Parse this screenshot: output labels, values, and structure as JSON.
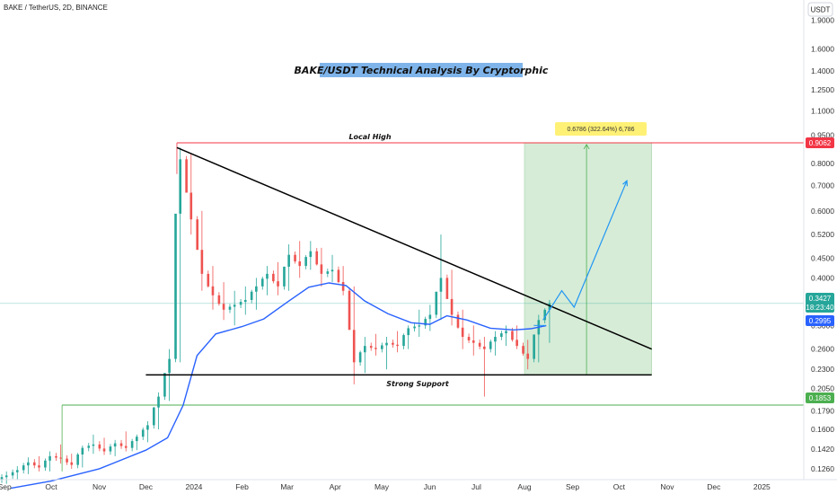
{
  "header": {
    "symbol": "BAKE / TetherUS, 2D, BINANCE",
    "currency_button": "USDT"
  },
  "chart_data": {
    "type": "candlestick",
    "title": "BAKE/USDT Technical Analysis By Cryptorphic",
    "y_scale": "log",
    "ylim": [
      0.118,
      2.15
    ],
    "y_ticks": [
      "1.9000",
      "1.6000",
      "1.4000",
      "1.2500",
      "1.1000",
      "0.9500",
      "0.8000",
      "0.7000",
      "0.6000",
      "0.5200",
      "0.4500",
      "0.4000",
      "0.3000",
      "0.2600",
      "0.2300",
      "0.2050",
      "0.1790",
      "0.1600",
      "0.1420",
      "0.1260"
    ],
    "x_ticks": [
      "Sep",
      "Oct",
      "Nov",
      "Dec",
      "2024",
      "Feb",
      "Mar",
      "Apr",
      "May",
      "Jun",
      "Jul",
      "Aug",
      "Sep",
      "Oct",
      "Nov",
      "Dec",
      "2025"
    ],
    "x_range": [
      "2023-08-29",
      "2025-01-28"
    ],
    "price_tags": {
      "local_high": "0.9062",
      "last_price": "0.3427",
      "countdown": "18:23:40",
      "moving_average": "0.2995",
      "support_level": "0.1853"
    },
    "annotations": {
      "local_high": "Local High",
      "strong_support": "Strong Support",
      "measure": "0.6786 (322.64%) 6,786"
    },
    "colors": {
      "bull": "#26a69a",
      "bear": "#ef5350",
      "ma": "#2962ff",
      "local_high_line": "#f23645",
      "support_line": "#4caf50",
      "title_bg": "#7eb4ea",
      "target_zone": "#c8e6c9",
      "projection": "#2196f3"
    },
    "levels": {
      "local_high": 0.9062,
      "support": 0.1853,
      "base_line": 0.2225,
      "current": 0.3427,
      "ma_last": 0.2995
    },
    "trendline": {
      "start": {
        "date": "2023-12-21",
        "value": 0.88
      },
      "end": {
        "date": "2024-10-22",
        "value": 0.26
      }
    },
    "support_segment": {
      "start": "2023-12-01",
      "end": "2024-10-22",
      "value": 0.2225
    },
    "local_high_segment": {
      "start": "2023-12-21",
      "value": 0.9062
    },
    "target_zone": {
      "start": "2024-08-01",
      "end": "2024-10-22",
      "top": 0.9062,
      "bottom": 0.2225
    },
    "projection_path": [
      {
        "date": "2024-08-13",
        "value": 0.31
      },
      {
        "date": "2024-08-25",
        "value": 0.37
      },
      {
        "date": "2024-09-02",
        "value": 0.335
      },
      {
        "date": "2024-10-06",
        "value": 0.72
      }
    ],
    "ohlc_weekly": [
      {
        "d": "2023-08-29",
        "o": 0.118,
        "h": 0.124,
        "l": 0.115,
        "c": 0.121
      },
      {
        "d": "2023-09-05",
        "o": 0.121,
        "h": 0.128,
        "l": 0.118,
        "c": 0.125
      },
      {
        "d": "2023-09-12",
        "o": 0.125,
        "h": 0.135,
        "l": 0.122,
        "c": 0.131
      },
      {
        "d": "2023-09-19",
        "o": 0.131,
        "h": 0.136,
        "l": 0.124,
        "c": 0.127
      },
      {
        "d": "2023-09-26",
        "o": 0.127,
        "h": 0.14,
        "l": 0.124,
        "c": 0.136
      },
      {
        "d": "2023-10-03",
        "o": 0.136,
        "h": 0.146,
        "l": 0.13,
        "c": 0.134
      },
      {
        "d": "2023-10-10",
        "o": 0.134,
        "h": 0.138,
        "l": 0.126,
        "c": 0.129
      },
      {
        "d": "2023-10-17",
        "o": 0.129,
        "h": 0.145,
        "l": 0.127,
        "c": 0.143
      },
      {
        "d": "2023-10-24",
        "o": 0.143,
        "h": 0.155,
        "l": 0.138,
        "c": 0.146
      },
      {
        "d": "2023-10-31",
        "o": 0.146,
        "h": 0.152,
        "l": 0.137,
        "c": 0.14
      },
      {
        "d": "2023-11-07",
        "o": 0.14,
        "h": 0.15,
        "l": 0.136,
        "c": 0.147
      },
      {
        "d": "2023-11-14",
        "o": 0.147,
        "h": 0.158,
        "l": 0.14,
        "c": 0.143
      },
      {
        "d": "2023-11-21",
        "o": 0.143,
        "h": 0.155,
        "l": 0.141,
        "c": 0.153
      },
      {
        "d": "2023-11-28",
        "o": 0.153,
        "h": 0.168,
        "l": 0.148,
        "c": 0.164
      },
      {
        "d": "2023-12-05",
        "o": 0.164,
        "h": 0.2,
        "l": 0.16,
        "c": 0.195
      },
      {
        "d": "2023-12-12",
        "o": 0.195,
        "h": 0.26,
        "l": 0.19,
        "c": 0.245
      },
      {
        "d": "2023-12-19",
        "o": 0.245,
        "h": 0.88,
        "l": 0.24,
        "c": 0.82
      },
      {
        "d": "2023-12-26",
        "o": 0.82,
        "h": 0.85,
        "l": 0.52,
        "c": 0.57
      },
      {
        "d": "2024-01-02",
        "o": 0.57,
        "h": 0.6,
        "l": 0.37,
        "c": 0.41
      },
      {
        "d": "2024-01-09",
        "o": 0.41,
        "h": 0.43,
        "l": 0.33,
        "c": 0.36
      },
      {
        "d": "2024-01-16",
        "o": 0.36,
        "h": 0.39,
        "l": 0.31,
        "c": 0.33
      },
      {
        "d": "2024-01-23",
        "o": 0.33,
        "h": 0.37,
        "l": 0.3,
        "c": 0.34
      },
      {
        "d": "2024-01-30",
        "o": 0.34,
        "h": 0.38,
        "l": 0.32,
        "c": 0.35
      },
      {
        "d": "2024-02-06",
        "o": 0.35,
        "h": 0.4,
        "l": 0.33,
        "c": 0.38
      },
      {
        "d": "2024-02-13",
        "o": 0.38,
        "h": 0.43,
        "l": 0.36,
        "c": 0.41
      },
      {
        "d": "2024-02-20",
        "o": 0.41,
        "h": 0.44,
        "l": 0.36,
        "c": 0.38
      },
      {
        "d": "2024-02-27",
        "o": 0.38,
        "h": 0.49,
        "l": 0.37,
        "c": 0.46
      },
      {
        "d": "2024-03-05",
        "o": 0.46,
        "h": 0.5,
        "l": 0.4,
        "c": 0.43
      },
      {
        "d": "2024-03-12",
        "o": 0.43,
        "h": 0.5,
        "l": 0.42,
        "c": 0.47
      },
      {
        "d": "2024-03-19",
        "o": 0.47,
        "h": 0.48,
        "l": 0.38,
        "c": 0.41
      },
      {
        "d": "2024-03-26",
        "o": 0.41,
        "h": 0.46,
        "l": 0.39,
        "c": 0.42
      },
      {
        "d": "2024-04-02",
        "o": 0.42,
        "h": 0.43,
        "l": 0.36,
        "c": 0.37
      },
      {
        "d": "2024-04-09",
        "o": 0.37,
        "h": 0.38,
        "l": 0.21,
        "c": 0.24
      },
      {
        "d": "2024-04-16",
        "o": 0.24,
        "h": 0.28,
        "l": 0.225,
        "c": 0.265
      },
      {
        "d": "2024-04-23",
        "o": 0.265,
        "h": 0.285,
        "l": 0.25,
        "c": 0.26
      },
      {
        "d": "2024-04-30",
        "o": 0.26,
        "h": 0.28,
        "l": 0.23,
        "c": 0.27
      },
      {
        "d": "2024-05-07",
        "o": 0.27,
        "h": 0.29,
        "l": 0.255,
        "c": 0.265
      },
      {
        "d": "2024-05-14",
        "o": 0.265,
        "h": 0.3,
        "l": 0.26,
        "c": 0.295
      },
      {
        "d": "2024-05-21",
        "o": 0.295,
        "h": 0.33,
        "l": 0.28,
        "c": 0.3
      },
      {
        "d": "2024-05-28",
        "o": 0.3,
        "h": 0.34,
        "l": 0.29,
        "c": 0.32
      },
      {
        "d": "2024-06-04",
        "o": 0.32,
        "h": 0.52,
        "l": 0.31,
        "c": 0.4
      },
      {
        "d": "2024-06-11",
        "o": 0.4,
        "h": 0.42,
        "l": 0.3,
        "c": 0.32
      },
      {
        "d": "2024-06-18",
        "o": 0.32,
        "h": 0.33,
        "l": 0.26,
        "c": 0.28
      },
      {
        "d": "2024-06-25",
        "o": 0.28,
        "h": 0.3,
        "l": 0.25,
        "c": 0.27
      },
      {
        "d": "2024-07-02",
        "o": 0.27,
        "h": 0.28,
        "l": 0.195,
        "c": 0.26
      },
      {
        "d": "2024-07-09",
        "o": 0.26,
        "h": 0.29,
        "l": 0.25,
        "c": 0.28
      },
      {
        "d": "2024-07-16",
        "o": 0.28,
        "h": 0.3,
        "l": 0.265,
        "c": 0.29
      },
      {
        "d": "2024-07-23",
        "o": 0.29,
        "h": 0.3,
        "l": 0.26,
        "c": 0.265
      },
      {
        "d": "2024-07-30",
        "o": 0.265,
        "h": 0.275,
        "l": 0.23,
        "c": 0.245
      },
      {
        "d": "2024-08-06",
        "o": 0.245,
        "h": 0.32,
        "l": 0.24,
        "c": 0.31
      },
      {
        "d": "2024-08-13",
        "o": 0.31,
        "h": 0.35,
        "l": 0.27,
        "c": 0.343
      }
    ],
    "ma_series": [
      {
        "d": "2023-09-05",
        "v": 0.112
      },
      {
        "d": "2023-10-01",
        "v": 0.117
      },
      {
        "d": "2023-11-01",
        "v": 0.126
      },
      {
        "d": "2023-12-01",
        "v": 0.141
      },
      {
        "d": "2023-12-15",
        "v": 0.152
      },
      {
        "d": "2023-12-25",
        "v": 0.185
      },
      {
        "d": "2024-01-03",
        "v": 0.25
      },
      {
        "d": "2024-01-15",
        "v": 0.285
      },
      {
        "d": "2024-02-01",
        "v": 0.298
      },
      {
        "d": "2024-02-15",
        "v": 0.312
      },
      {
        "d": "2024-03-01",
        "v": 0.345
      },
      {
        "d": "2024-03-15",
        "v": 0.378
      },
      {
        "d": "2024-03-28",
        "v": 0.388
      },
      {
        "d": "2024-04-08",
        "v": 0.382
      },
      {
        "d": "2024-04-20",
        "v": 0.348
      },
      {
        "d": "2024-05-05",
        "v": 0.322
      },
      {
        "d": "2024-05-20",
        "v": 0.305
      },
      {
        "d": "2024-06-01",
        "v": 0.302
      },
      {
        "d": "2024-06-12",
        "v": 0.318
      },
      {
        "d": "2024-06-25",
        "v": 0.31
      },
      {
        "d": "2024-07-10",
        "v": 0.295
      },
      {
        "d": "2024-07-25",
        "v": 0.292
      },
      {
        "d": "2024-08-05",
        "v": 0.294
      },
      {
        "d": "2024-08-15",
        "v": 0.2995
      }
    ]
  }
}
